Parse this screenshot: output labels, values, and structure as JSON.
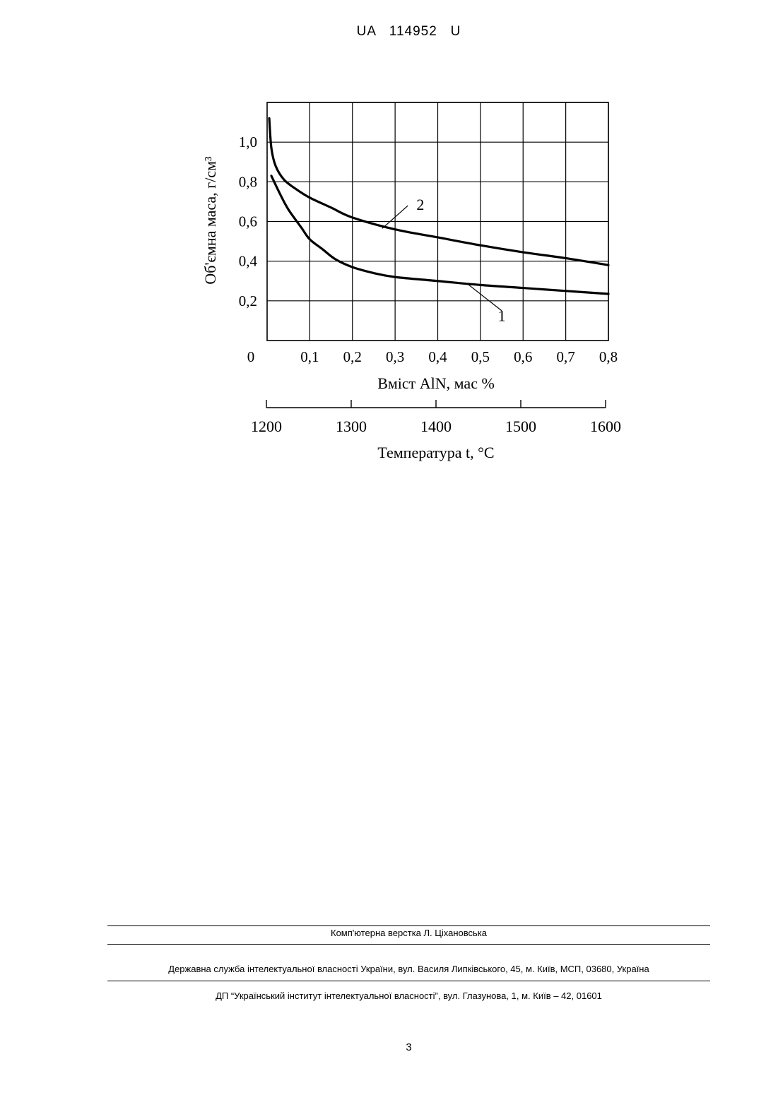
{
  "header": {
    "doc_number": "UA   114952   U"
  },
  "chart_data": {
    "type": "line",
    "ylabel": "Об'ємна маса, г/см³",
    "xlabel": "Вміст AlN, мас %",
    "x2label": "Температура t, °C",
    "xlim": [
      0,
      0.8
    ],
    "ylim": [
      0,
      1.2
    ],
    "origin_label": "0",
    "x_ticks": [
      "0,1",
      "0,2",
      "0,3",
      "0,4",
      "0,5",
      "0,6",
      "0,7",
      "0,8"
    ],
    "y_ticks": [
      "0,2",
      "0,4",
      "0,6",
      "0,8",
      "1,0"
    ],
    "y_tick_values": [
      0.2,
      0.4,
      0.6,
      0.8,
      1.0
    ],
    "x_tick_values": [
      0.1,
      0.2,
      0.3,
      0.4,
      0.5,
      0.6,
      0.7,
      0.8
    ],
    "x2_ticks": [
      "1200",
      "1300",
      "1400",
      "1500",
      "1600"
    ],
    "x2_tick_values": [
      1200,
      1300,
      1400,
      1500,
      1600
    ],
    "grid": true,
    "series": [
      {
        "name": "1",
        "x": [
          0.01,
          0.03,
          0.05,
          0.08,
          0.1,
          0.13,
          0.16,
          0.2,
          0.25,
          0.3,
          0.4,
          0.5,
          0.6,
          0.7,
          0.8
        ],
        "y": [
          0.83,
          0.74,
          0.66,
          0.57,
          0.51,
          0.46,
          0.41,
          0.37,
          0.34,
          0.32,
          0.3,
          0.28,
          0.265,
          0.25,
          0.235
        ]
      },
      {
        "name": "2",
        "x": [
          0.005,
          0.01,
          0.02,
          0.04,
          0.07,
          0.1,
          0.15,
          0.2,
          0.3,
          0.4,
          0.5,
          0.6,
          0.7,
          0.8
        ],
        "y": [
          1.12,
          0.97,
          0.88,
          0.81,
          0.76,
          0.72,
          0.67,
          0.62,
          0.56,
          0.52,
          0.48,
          0.445,
          0.415,
          0.38
        ]
      }
    ]
  },
  "footer": {
    "layout_credit": "Комп'ютерна верстка Л. Ціхановська",
    "agency": "Державна служба інтелектуальної власності України, вул. Василя Липківського, 45, м. Київ, МСП, 03680, Україна",
    "institute": "ДП “Український інститут інтелектуальної власності”, вул. Глазунова, 1, м. Київ – 42, 01601"
  },
  "page_number": "3"
}
